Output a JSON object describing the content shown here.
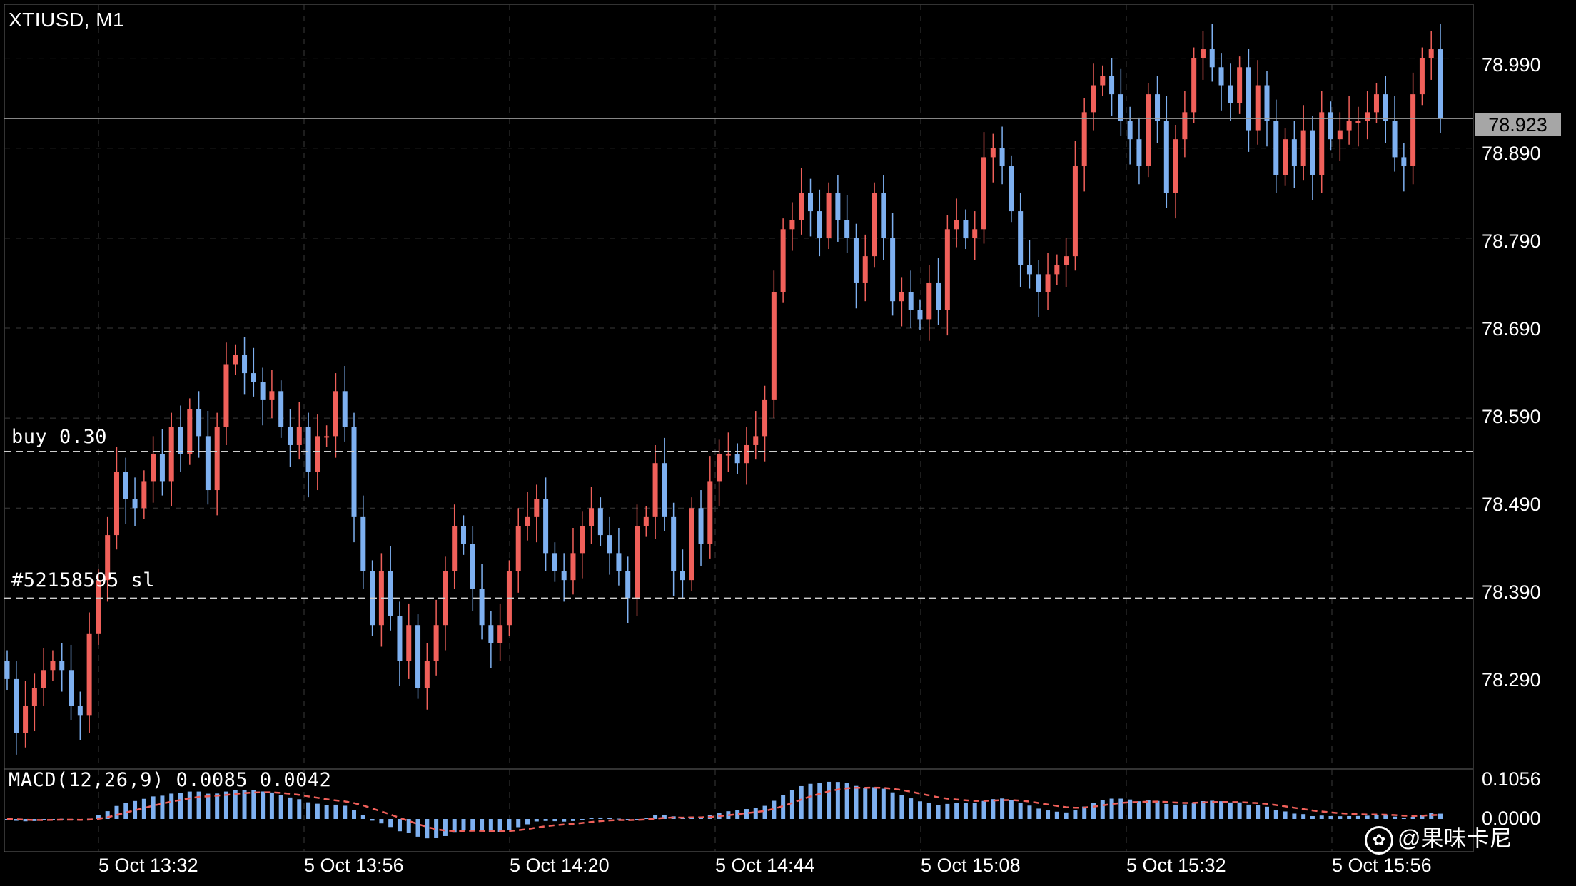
{
  "chart": {
    "symbol": "XTIUSD, M1",
    "current_price": "78.923",
    "bull_color": "#f0605a",
    "bear_color": "#7eb0f0",
    "grid_color": "#3a3a3a",
    "price_ticks": [
      "78.990",
      "78.890",
      "78.790",
      "78.690",
      "78.590",
      "78.490",
      "78.390",
      "78.290"
    ],
    "time_ticks": [
      "5 Oct 13:32",
      "5 Oct 13:56",
      "5 Oct 14:20",
      "5 Oct 14:44",
      "5 Oct 15:08",
      "5 Oct 15:32",
      "5 Oct 15:56"
    ],
    "order_lines": {
      "buy": "buy 0.30",
      "stop_loss": "#52158595 sl"
    },
    "macd": {
      "label": "MACD(12,26,9) 0.0085 0.0042",
      "ticks": [
        "0.1056",
        "0.0000"
      ]
    },
    "watermark": "@果味卡尼"
  },
  "chart_data": {
    "type": "candlestick",
    "title": "XTIUSD, M1",
    "ylim": [
      78.2,
      79.05
    ],
    "current_price": 78.923,
    "buy_price": 78.553,
    "stop_loss_price": 78.39,
    "x_labels": [
      "5 Oct 13:32",
      "5 Oct 13:56",
      "5 Oct 14:20",
      "5 Oct 14:44",
      "5 Oct 15:08",
      "5 Oct 15:32",
      "5 Oct 15:56"
    ],
    "close": [
      78.3,
      78.24,
      78.27,
      78.29,
      78.31,
      78.32,
      78.31,
      78.27,
      78.26,
      78.35,
      78.41,
      78.46,
      78.53,
      78.5,
      78.49,
      78.52,
      78.55,
      78.52,
      78.58,
      78.55,
      78.6,
      78.57,
      78.51,
      78.58,
      78.65,
      78.66,
      78.64,
      78.63,
      78.61,
      78.62,
      78.58,
      78.56,
      78.58,
      78.53,
      78.57,
      78.57,
      78.62,
      78.58,
      78.48,
      78.42,
      78.36,
      78.42,
      78.37,
      78.32,
      78.36,
      78.29,
      78.32,
      78.36,
      78.42,
      78.47,
      78.45,
      78.4,
      78.36,
      78.34,
      78.36,
      78.42,
      78.47,
      78.48,
      78.5,
      78.44,
      78.42,
      78.41,
      78.44,
      78.47,
      78.49,
      78.46,
      78.44,
      78.42,
      78.39,
      78.47,
      78.48,
      78.54,
      78.48,
      78.42,
      78.41,
      78.49,
      78.45,
      78.52,
      78.55,
      78.55,
      78.54,
      78.56,
      78.57,
      78.61,
      78.73,
      78.8,
      78.81,
      78.84,
      78.82,
      78.79,
      78.84,
      78.81,
      78.79,
      78.74,
      78.77,
      78.84,
      78.79,
      78.72,
      78.73,
      78.71,
      78.7,
      78.74,
      78.71,
      78.8,
      78.81,
      78.79,
      78.8,
      78.88,
      78.89,
      78.87,
      78.82,
      78.76,
      78.75,
      78.73,
      78.75,
      78.76,
      78.77,
      78.87,
      78.93,
      78.96,
      78.97,
      78.95,
      78.92,
      78.9,
      78.87,
      78.95,
      78.92,
      78.84,
      78.9,
      78.93,
      78.99,
      79.0,
      78.98,
      78.96,
      78.94,
      78.98,
      78.91,
      78.96,
      78.92,
      78.86,
      78.9,
      78.87,
      78.91,
      78.86,
      78.93,
      78.9,
      78.91,
      78.92,
      78.92,
      78.93,
      78.95,
      78.92,
      78.88,
      78.87,
      78.95,
      78.99,
      79.0,
      78.923
    ],
    "macd_line_latest": 0.0085,
    "signal_line_latest": 0.0042,
    "macd_ylim": [
      -0.03,
      0.1056
    ]
  }
}
